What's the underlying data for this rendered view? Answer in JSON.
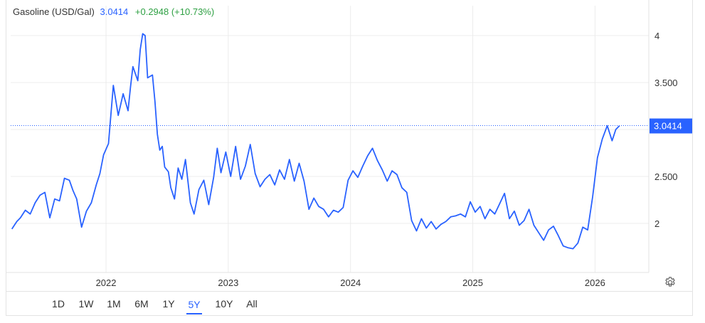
{
  "legend": {
    "symbol": "Gasoline (USD/Gal)",
    "price": "3.0414",
    "change": "+0.2948 (+10.73%)"
  },
  "range_buttons": [
    "1D",
    "1W",
    "1M",
    "6M",
    "1Y",
    "5Y",
    "10Y",
    "All"
  ],
  "active_range": "5Y",
  "colors": {
    "line": "#2962ff",
    "grid": "#ececec",
    "up": "#2ea043",
    "badge": "#2962ff"
  },
  "icons": {
    "settings": "gear-icon"
  },
  "chart_data": {
    "type": "line",
    "title": "",
    "xlabel": "",
    "ylabel": "",
    "x_ticks": [
      "2022",
      "2023",
      "2024",
      "2025",
      "2026"
    ],
    "y_ticks": [
      "4",
      "3.500",
      "2.500",
      "2"
    ],
    "y_tick_values": [
      4,
      3.5,
      2.5,
      2
    ],
    "last_value": 3.0414,
    "last_value_label": "3.0414",
    "x_range": [
      2021.22,
      2026.44
    ],
    "ylim": [
      1.5,
      4.25
    ],
    "grid": true,
    "series": [
      {
        "x": [
          2021.23,
          2021.27,
          2021.3,
          2021.34,
          2021.38,
          2021.42,
          2021.46,
          2021.5,
          2021.54,
          2021.58,
          2021.62,
          2021.66,
          2021.7,
          2021.73,
          2021.76,
          2021.8,
          2021.84,
          2021.88,
          2021.92,
          2021.95,
          2021.98,
          2022.02,
          2022.06,
          2022.1,
          2022.14,
          2022.18,
          2022.2,
          2022.22,
          2022.26,
          2022.28,
          2022.3,
          2022.32,
          2022.34,
          2022.38,
          2022.4,
          2022.42,
          2022.44,
          2022.46,
          2022.48,
          2022.51,
          2022.53,
          2022.56,
          2022.59,
          2022.62,
          2022.65,
          2022.69,
          2022.72,
          2022.76,
          2022.8,
          2022.84,
          2022.88,
          2022.91,
          2022.94,
          2022.98,
          2023.02,
          2023.06,
          2023.1,
          2023.14,
          2023.18,
          2023.22,
          2023.26,
          2023.3,
          2023.34,
          2023.38,
          2023.42,
          2023.46,
          2023.5,
          2023.54,
          2023.58,
          2023.62,
          2023.66,
          2023.7,
          2023.74,
          2023.78,
          2023.82,
          2023.86,
          2023.9,
          2023.94,
          2023.98,
          2024.02,
          2024.06,
          2024.1,
          2024.14,
          2024.18,
          2024.22,
          2024.26,
          2024.3,
          2024.34,
          2024.38,
          2024.42,
          2024.46,
          2024.5,
          2024.54,
          2024.58,
          2024.62,
          2024.66,
          2024.7,
          2024.74,
          2024.78,
          2024.82,
          2024.86,
          2024.9,
          2024.94,
          2024.98,
          2025.02,
          2025.06,
          2025.1,
          2025.14,
          2025.18,
          2025.22,
          2025.26,
          2025.3,
          2025.34,
          2025.38,
          2025.42,
          2025.46,
          2025.5,
          2025.54,
          2025.58,
          2025.62,
          2025.66,
          2025.7,
          2025.74,
          2025.78,
          2025.82,
          2025.86,
          2025.9,
          2025.94,
          2025.98,
          2026.02,
          2026.06,
          2026.1,
          2026.14,
          2026.17,
          2026.2
        ],
        "values": [
          1.94,
          2.02,
          2.06,
          2.14,
          2.1,
          2.22,
          2.3,
          2.33,
          2.06,
          2.26,
          2.24,
          2.48,
          2.46,
          2.35,
          2.26,
          1.96,
          2.13,
          2.22,
          2.41,
          2.53,
          2.73,
          2.85,
          3.47,
          3.15,
          3.38,
          3.2,
          3.45,
          3.67,
          3.52,
          3.85,
          4.02,
          4.0,
          3.55,
          3.58,
          3.3,
          2.95,
          2.78,
          2.82,
          2.6,
          2.55,
          2.38,
          2.26,
          2.59,
          2.47,
          2.68,
          2.22,
          2.1,
          2.36,
          2.46,
          2.2,
          2.49,
          2.8,
          2.54,
          2.76,
          2.5,
          2.82,
          2.47,
          2.61,
          2.84,
          2.53,
          2.39,
          2.47,
          2.52,
          2.41,
          2.57,
          2.47,
          2.68,
          2.45,
          2.64,
          2.45,
          2.15,
          2.27,
          2.18,
          2.15,
          2.07,
          2.14,
          2.12,
          2.17,
          2.46,
          2.56,
          2.49,
          2.61,
          2.72,
          2.8,
          2.67,
          2.57,
          2.45,
          2.56,
          2.52,
          2.38,
          2.33,
          2.03,
          1.92,
          2.05,
          1.95,
          2.02,
          1.94,
          1.99,
          2.02,
          2.07,
          2.08,
          2.1,
          2.07,
          2.23,
          2.12,
          2.18,
          2.05,
          2.15,
          2.1,
          2.21,
          2.32,
          2.05,
          2.13,
          1.98,
          2.03,
          2.15,
          1.98,
          1.9,
          1.82,
          1.93,
          1.97,
          1.87,
          1.76,
          1.74,
          1.73,
          1.79,
          1.96,
          1.93,
          2.28,
          2.7,
          2.9,
          3.04,
          2.88,
          3.0,
          3.04
        ]
      }
    ]
  }
}
